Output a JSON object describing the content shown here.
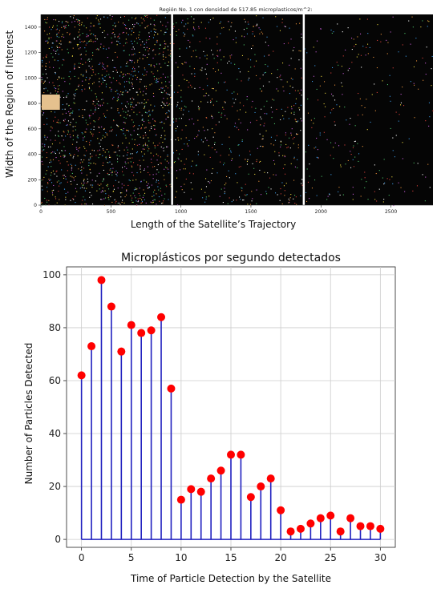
{
  "chart_data": [
    {
      "type": "heatmap",
      "title": "Región No. 1 con densidad de 517.85 microplasticos/m^2:",
      "xlabel": "Length of the Satellite’s Trajectory",
      "ylabel": "Width of the Region of Interest",
      "xlim": [
        0,
        2800
      ],
      "ylim": [
        0,
        1500
      ],
      "x_ticks": [
        0,
        500,
        1000,
        1500,
        2000,
        2500
      ],
      "y_ticks": [
        0,
        200,
        400,
        600,
        800,
        1000,
        1200,
        1400
      ],
      "panels": [
        {
          "x_range": [
            0,
            930
          ],
          "density": "high"
        },
        {
          "x_range": [
            940,
            1870
          ],
          "density": "medium"
        },
        {
          "x_range": [
            1880,
            2800
          ],
          "density": "low"
        }
      ],
      "highlight_box": {
        "x_range": [
          0,
          130
        ],
        "y_range": [
          750,
          870
        ],
        "color": "#e5c18e"
      },
      "background_color": "#050505",
      "grid": false
    },
    {
      "type": "stem",
      "title": "Microplásticos por segundo detectados",
      "xlabel": "Time of Particle Detection by the Satellite",
      "ylabel": "Number of Particles Detected",
      "x": [
        0,
        1,
        2,
        3,
        4,
        5,
        6,
        7,
        8,
        9,
        10,
        11,
        12,
        13,
        14,
        15,
        16,
        17,
        18,
        19,
        20,
        21,
        22,
        23,
        24,
        25,
        26,
        27,
        28,
        29,
        30
      ],
      "values": [
        62,
        73,
        98,
        88,
        71,
        81,
        78,
        79,
        84,
        57,
        15,
        19,
        18,
        23,
        26,
        32,
        32,
        16,
        20,
        23,
        11,
        3,
        4,
        6,
        8,
        9,
        3,
        8,
        5,
        5,
        4
      ],
      "xlim": [
        -1.5,
        31.5
      ],
      "ylim": [
        -3,
        103
      ],
      "x_ticks": [
        0,
        5,
        10,
        15,
        20,
        25,
        30
      ],
      "y_ticks": [
        0,
        20,
        40,
        60,
        80,
        100
      ],
      "stem_color": "#1f1fbf",
      "marker_color": "#ff0000",
      "baseline_color": "#1f1fbf",
      "grid": true
    }
  ]
}
